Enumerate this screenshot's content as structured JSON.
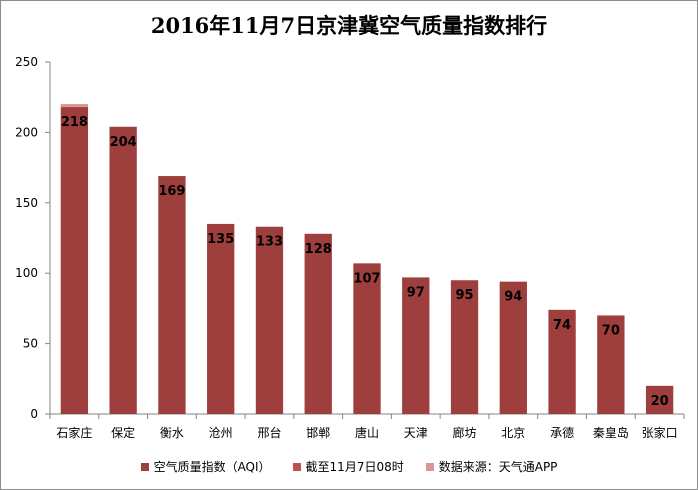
{
  "chart_data": {
    "type": "bar",
    "title": "2016年11月7日京津冀空气质量指数排行",
    "categories": [
      "石家庄",
      "保定",
      "衡水",
      "沧州",
      "邢台",
      "邯郸",
      "唐山",
      "天津",
      "廊坊",
      "北京",
      "承德",
      "秦皇岛",
      "张家口"
    ],
    "series": [
      {
        "name": "空气质量指数（AQI）",
        "values": [
          218,
          204,
          169,
          135,
          133,
          128,
          107,
          97,
          95,
          94,
          74,
          70,
          20
        ],
        "color": "#9e3f3d"
      }
    ],
    "ylim": [
      0,
      250
    ],
    "yticks": [
      0,
      50,
      100,
      150,
      200,
      250
    ],
    "grid": false,
    "legend_position": "bottom",
    "legend": [
      {
        "label": "空气质量指数（AQI）",
        "color": "#9e3f3d"
      },
      {
        "label": "截至11月7日08时",
        "color": "#c0504d"
      },
      {
        "label": "数据来源：天气通APP",
        "color": "#d99694"
      }
    ]
  }
}
